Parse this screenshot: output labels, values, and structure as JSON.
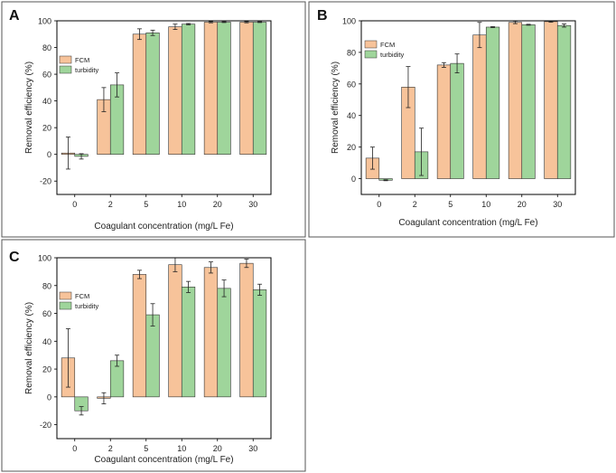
{
  "colors": {
    "fcm": "#f7c39a",
    "turbidity": "#9fd59b",
    "axis": "#000000",
    "frame": "#555555"
  },
  "chart_data": [
    {
      "panel_label": "A",
      "type": "bar",
      "categories": [
        "0",
        "2",
        "5",
        "10",
        "20",
        "30"
      ],
      "xlabel": "Coagulant concentration (mg/L Fe)",
      "ylabel": "Removal efficiency (%)",
      "ylim": [
        -30,
        100
      ],
      "yticks": [
        -20,
        0,
        20,
        40,
        60,
        80,
        100
      ],
      "legend_position": "top-left",
      "series": [
        {
          "name": "FCM",
          "color_key": "fcm",
          "values": [
            1,
            41,
            90,
            95.5,
            99,
            99
          ],
          "errors": [
            12,
            9,
            4,
            2,
            0.5,
            0.5
          ]
        },
        {
          "name": "turbidity",
          "color_key": "turbidity",
          "values": [
            -1.5,
            52,
            91,
            97.5,
            99,
            99
          ],
          "errors": [
            2,
            9,
            2,
            0.5,
            0.3,
            0.3
          ]
        }
      ]
    },
    {
      "panel_label": "B",
      "type": "bar",
      "categories": [
        "0",
        "2",
        "5",
        "10",
        "20",
        "30"
      ],
      "xlabel": "Coagulant concentration (mg/L Fe)",
      "ylabel": "Removal efficiency (%)",
      "ylim": [
        -10,
        100
      ],
      "yticks": [
        0,
        20,
        40,
        60,
        80,
        100
      ],
      "legend_position": "top-left",
      "series": [
        {
          "name": "FCM",
          "color_key": "fcm",
          "values": [
            13,
            58,
            72,
            91,
            99,
            99.5
          ],
          "errors": [
            7,
            13,
            1.5,
            8,
            0.8,
            0.4
          ]
        },
        {
          "name": "turbidity",
          "color_key": "turbidity",
          "values": [
            -1,
            17,
            73,
            96,
            97.5,
            97
          ],
          "errors": [
            0.3,
            15,
            6,
            0.3,
            0.3,
            1
          ]
        }
      ]
    },
    {
      "panel_label": "C",
      "type": "bar",
      "categories": [
        "0",
        "2",
        "5",
        "10",
        "20",
        "30"
      ],
      "xlabel": "Coagulant concentration (mg/L Fe)",
      "ylabel": "Removal efficiency (%)",
      "ylim": [
        -30,
        100
      ],
      "yticks": [
        -20,
        0,
        20,
        40,
        60,
        80,
        100
      ],
      "legend_position": "top-left",
      "series": [
        {
          "name": "FCM",
          "color_key": "fcm",
          "values": [
            28,
            -1,
            88,
            95,
            93,
            96
          ],
          "errors": [
            21,
            4,
            3,
            5,
            4,
            3
          ]
        },
        {
          "name": "turbidity",
          "color_key": "turbidity",
          "values": [
            -10,
            26,
            59,
            79,
            78,
            77
          ],
          "errors": [
            3,
            4,
            8,
            4,
            6,
            4
          ]
        }
      ]
    }
  ]
}
